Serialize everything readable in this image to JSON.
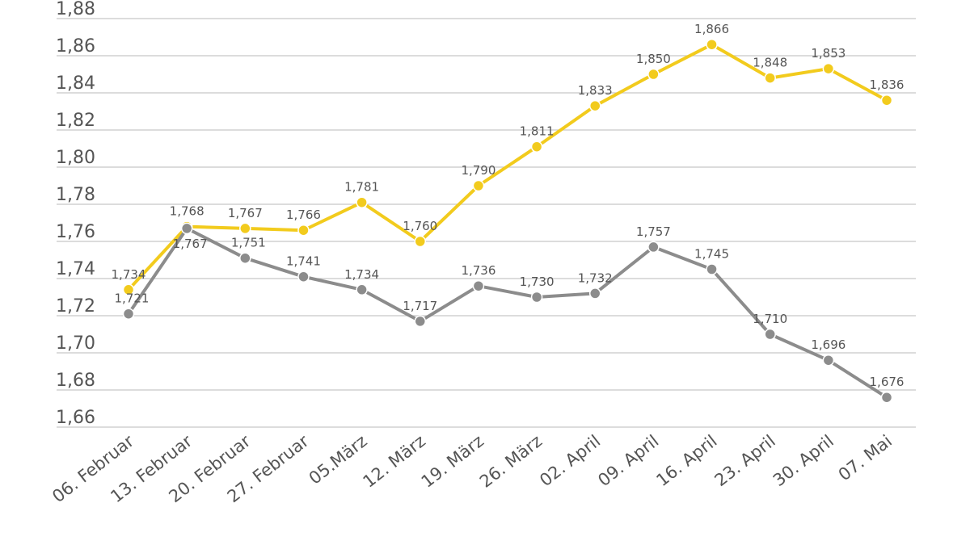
{
  "chart_data": {
    "type": "line",
    "title": "",
    "xlabel": "",
    "ylabel": "",
    "ylim": [
      1.66,
      1.88
    ],
    "y_ticks": [
      "1,66",
      "1,68",
      "1,70",
      "1,72",
      "1,74",
      "1,76",
      "1,78",
      "1,80",
      "1,82",
      "1,84",
      "1,86",
      "1,88"
    ],
    "categories": [
      "06. Februar",
      "13. Februar",
      "20. Februar",
      "27. Februar",
      "05.März",
      "12. März",
      "19. März",
      "26. März",
      "02. April",
      "09. April",
      "16. April",
      "23. April",
      "30. April",
      "07. Mai"
    ],
    "grid": true,
    "series": [
      {
        "name": "yellow-series",
        "color": "#f2cb1d",
        "values": [
          1.734,
          1.768,
          1.767,
          1.766,
          1.781,
          1.76,
          1.79,
          1.811,
          1.833,
          1.85,
          1.866,
          1.848,
          1.853,
          1.836
        ],
        "labels": [
          "1,734",
          "1,768",
          "1,767",
          "1,766",
          "1,781",
          "1,760",
          "1,790",
          "1,811",
          "1,833",
          "1,850",
          "1,866",
          "1,848",
          "1,853",
          "1,836"
        ]
      },
      {
        "name": "gray-series",
        "color": "#8c8c8c",
        "values": [
          1.721,
          1.767,
          1.751,
          1.741,
          1.734,
          1.717,
          1.736,
          1.73,
          1.732,
          1.757,
          1.745,
          1.71,
          1.696,
          1.676
        ],
        "labels": [
          "1,721",
          "1,767",
          "1,751",
          "1,741",
          "1,734",
          "1,717",
          "1,736",
          "1,730",
          "1,732",
          "1,757",
          "1,745",
          "1,710",
          "1,696",
          "1,676"
        ]
      }
    ]
  }
}
